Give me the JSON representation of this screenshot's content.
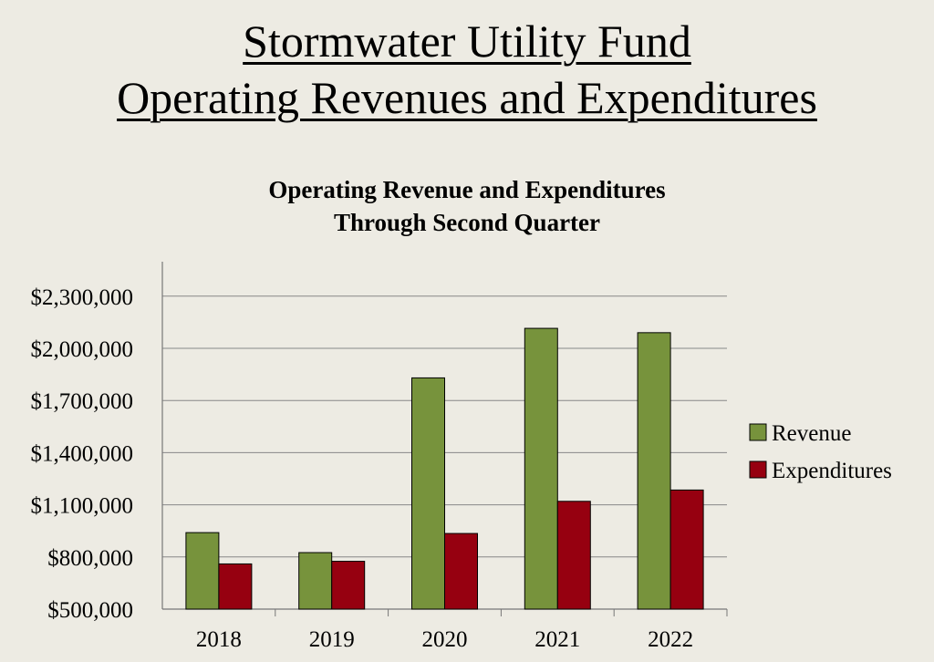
{
  "slide": {
    "title_line1": "Stormwater Utility Fund",
    "title_line2": "Operating Revenues and Expenditures"
  },
  "chart_data": {
    "type": "bar",
    "title_line1": "Operating Revenue and Expenditures",
    "title_line2": "Through Second Quarter",
    "categories": [
      "2018",
      "2019",
      "2020",
      "2021",
      "2022"
    ],
    "series": [
      {
        "name": "Revenue",
        "color": "#77933c",
        "values": [
          940000,
          825000,
          1830000,
          2115000,
          2090000
        ]
      },
      {
        "name": "Expenditures",
        "color": "#960010",
        "values": [
          760000,
          775000,
          935000,
          1120000,
          1185000
        ]
      }
    ],
    "ylim": [
      500000,
      2500000
    ],
    "yticks": [
      500000,
      800000,
      1100000,
      1400000,
      1700000,
      2000000,
      2300000
    ],
    "ytick_labels": [
      "$500,000",
      "$800,000",
      "$1,100,000",
      "$1,400,000",
      "$1,700,000",
      "$2,000,000",
      "$2,300,000"
    ],
    "grid": true,
    "legend_position": "right"
  }
}
